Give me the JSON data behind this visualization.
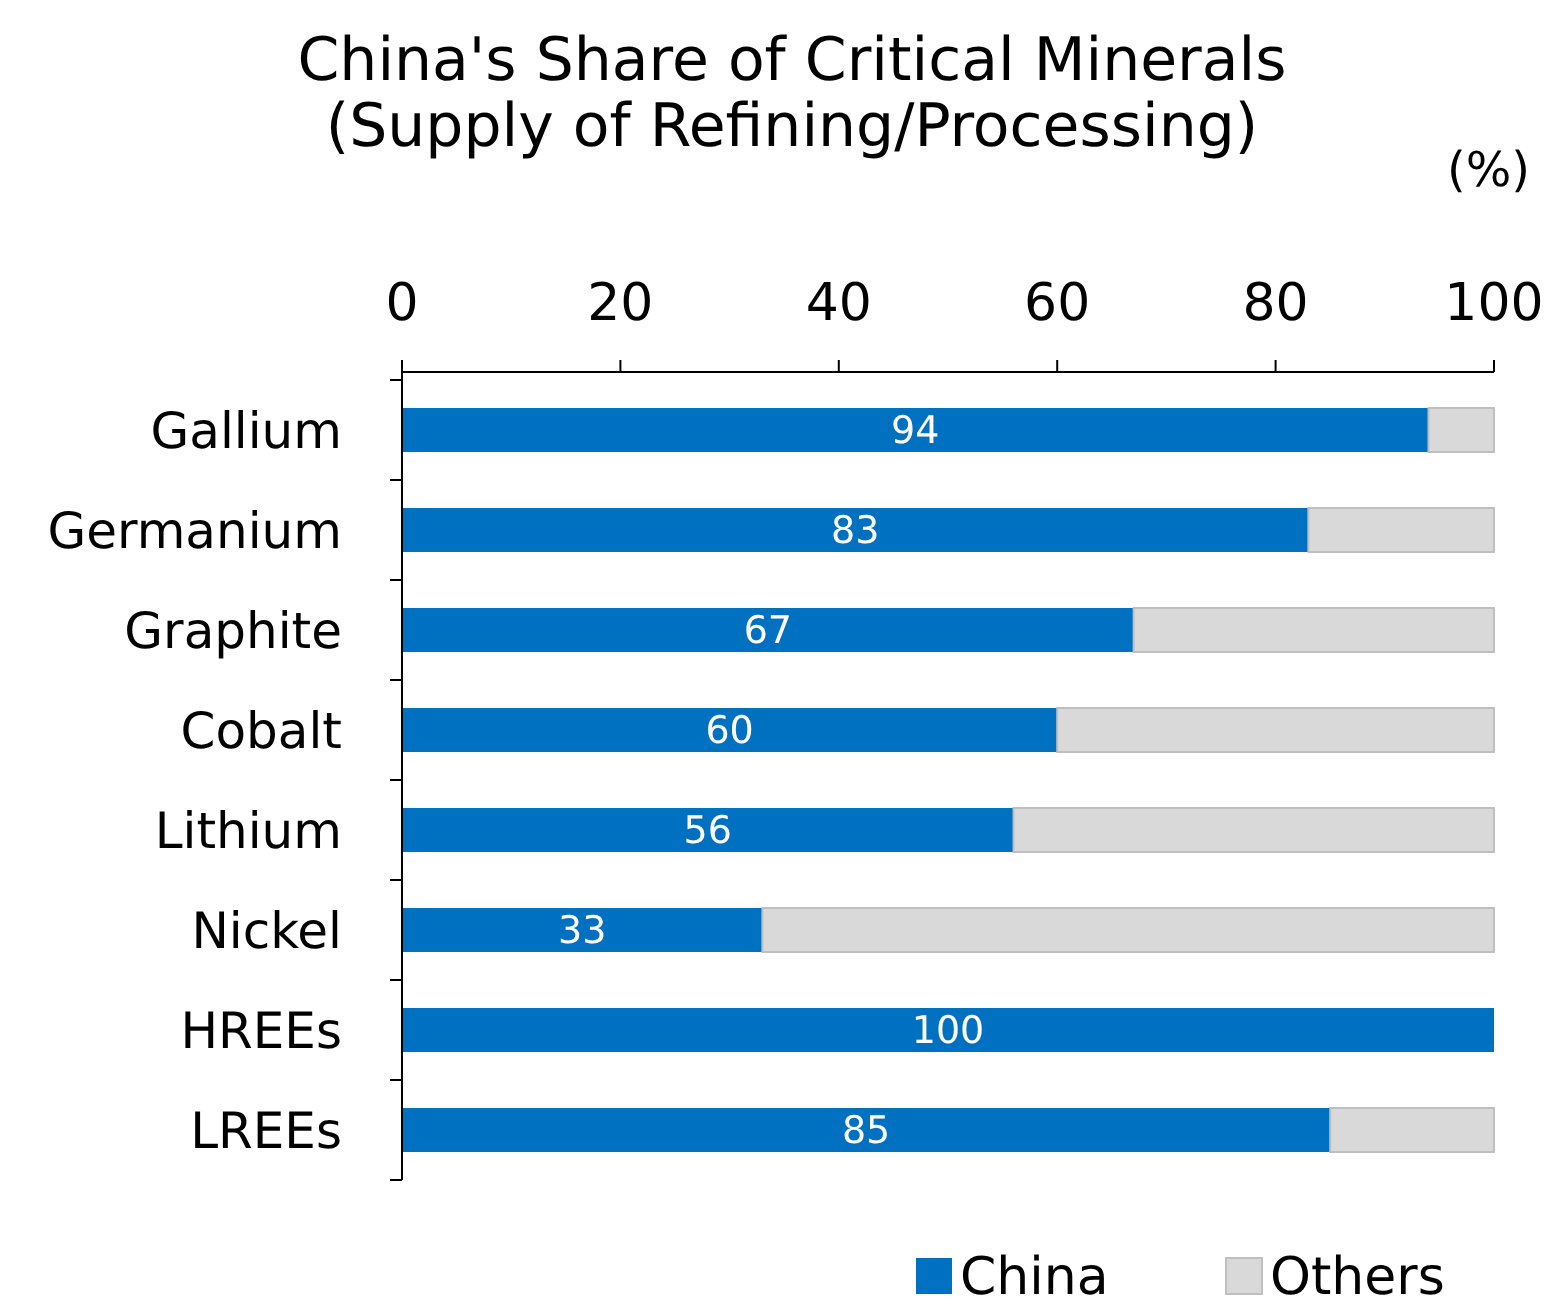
{
  "chart_data": {
    "type": "bar",
    "orientation": "horizontal",
    "stacked": true,
    "title": "China's Share of Critical Minerals\n(Supply of Refining/Processing)",
    "annotations": [
      "(%)"
    ],
    "categories": [
      "Gallium",
      "Germanium",
      "Graphite",
      "Cobalt",
      "Lithium",
      "Nickel",
      "HREEs",
      "LREEs"
    ],
    "series": [
      {
        "name": "China",
        "color": "#0070c0",
        "values": [
          94,
          83,
          67,
          60,
          56,
          33,
          100,
          85
        ],
        "value_labels": [
          "94",
          "83",
          "67",
          "60",
          "56",
          "33",
          "100",
          "85"
        ]
      },
      {
        "name": "Others",
        "color": "#d9d9d9",
        "values": [
          6,
          17,
          33,
          40,
          44,
          67,
          0,
          15
        ]
      }
    ],
    "xlim": [
      0,
      100
    ],
    "xticks": [
      0,
      20,
      40,
      60,
      80,
      100
    ],
    "grid": false,
    "legend": "bottom right"
  }
}
